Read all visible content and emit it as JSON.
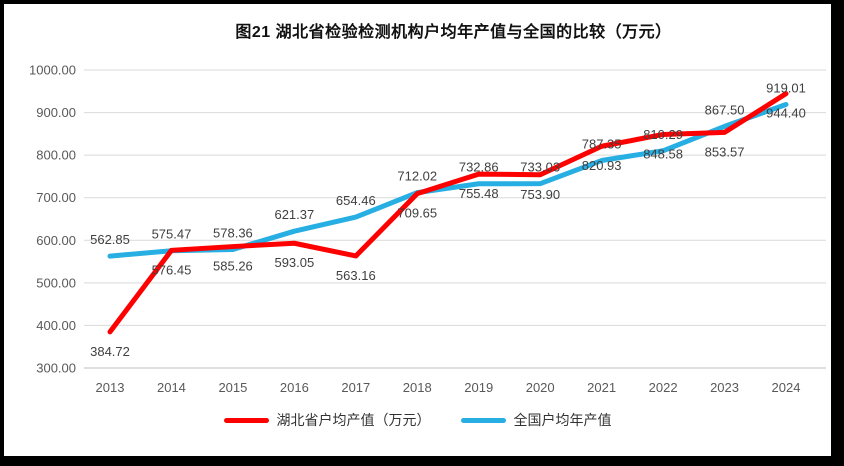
{
  "chart_data": {
    "type": "line",
    "title": "图21  湖北省检验检测机构户均年产值与全国的比较（万元）",
    "categories": [
      "2013",
      "2014",
      "2015",
      "2016",
      "2017",
      "2018",
      "2019",
      "2020",
      "2021",
      "2022",
      "2023",
      "2024"
    ],
    "series": [
      {
        "id": "hubei",
        "name": "湖北省户均产值（万元）",
        "color": "#FF0000",
        "label_position": "below",
        "values": [
          384.72,
          576.45,
          585.26,
          593.05,
          563.16,
          709.65,
          755.48,
          753.9,
          820.93,
          848.58,
          853.57,
          944.4
        ]
      },
      {
        "id": "national",
        "name": "全国户均年产值",
        "color": "#27AEE3",
        "label_position": "above",
        "values": [
          562.85,
          575.47,
          578.36,
          621.37,
          654.46,
          712.02,
          732.86,
          733.03,
          787.35,
          810.29,
          867.5,
          919.01
        ]
      }
    ],
    "y_axis": {
      "min": 300,
      "max": 1000,
      "step": 100,
      "tick_labels": [
        "1000.00",
        "900.00",
        "800.00",
        "700.00",
        "600.00",
        "500.00",
        "400.00",
        "300.00"
      ]
    },
    "x_axis": {
      "tick_labels": [
        "2013",
        "2014",
        "2015",
        "2016",
        "2017",
        "2018",
        "2019",
        "2020",
        "2021",
        "2022",
        "2023",
        "2024"
      ]
    },
    "legend_position": "bottom",
    "grid": "horizontal",
    "styles": {
      "gridline_color": "#D9D9D9",
      "axis_line_color": "#BFBFBF",
      "tick_text_color": "#595959",
      "data_label_color": "#404040",
      "line_width": 5
    }
  }
}
